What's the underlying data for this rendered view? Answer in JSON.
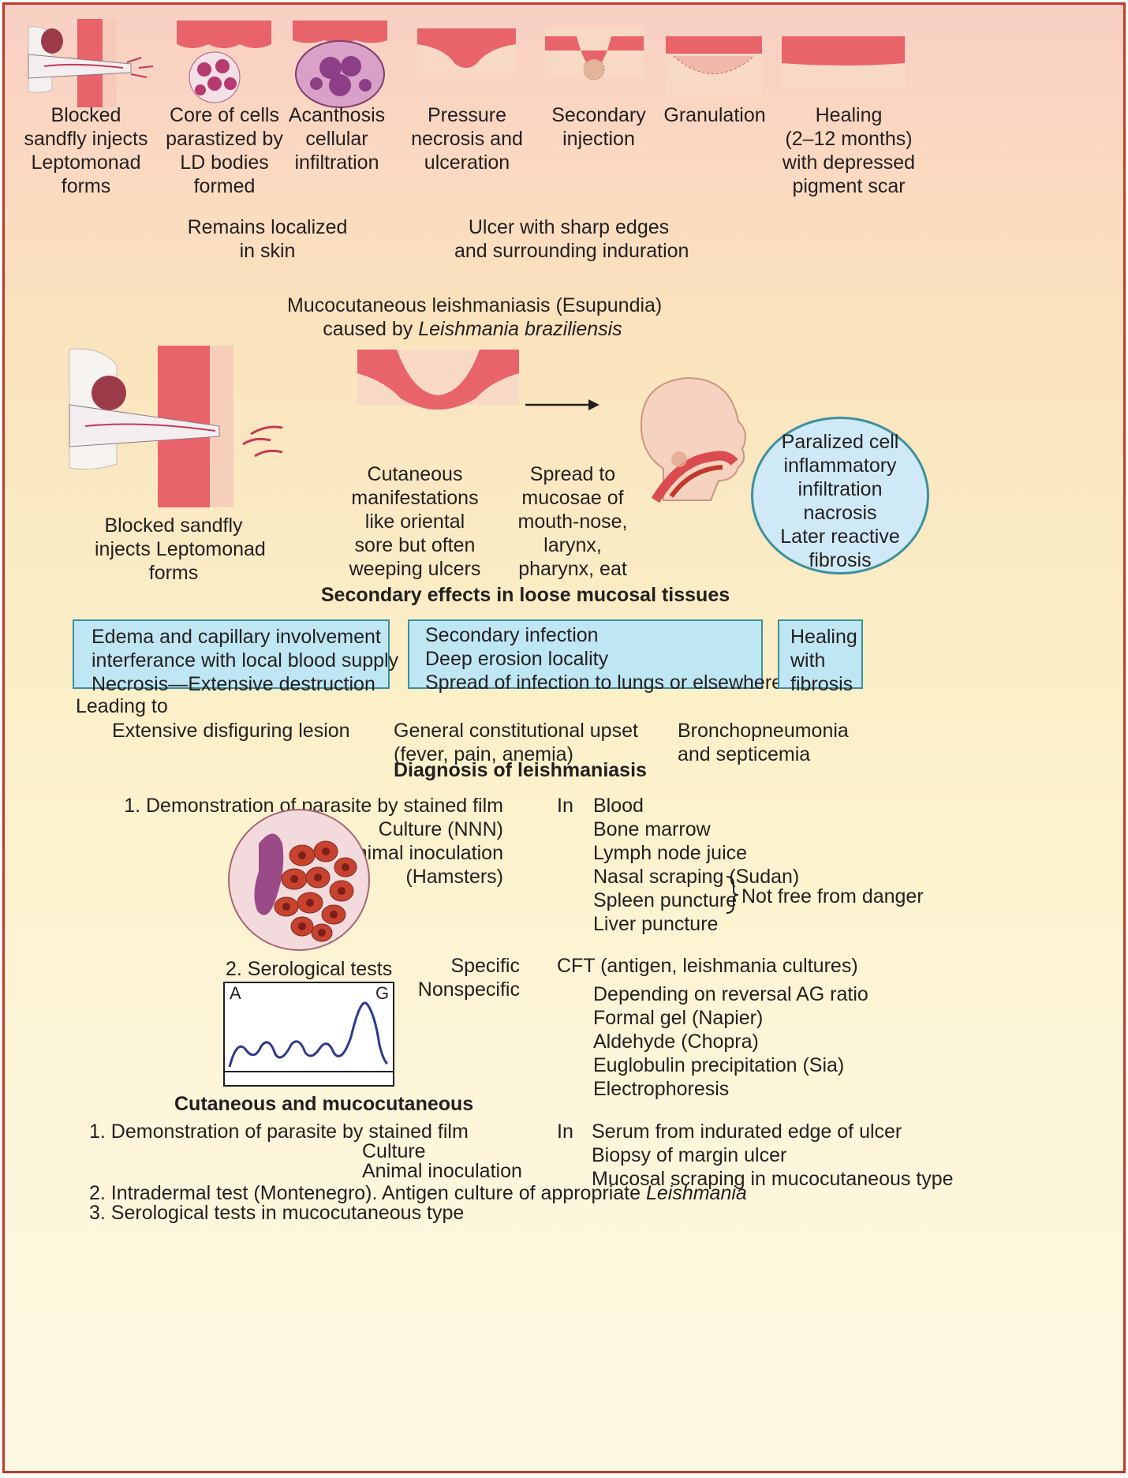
{
  "top_stages": [
    {
      "lines": [
        "Blocked",
        "sandfly injects",
        "Leptomonad",
        "forms"
      ]
    },
    {
      "lines": [
        "Core of cells",
        "parastized by",
        "LD bodies",
        "formed"
      ]
    },
    {
      "lines": [
        "Acanthosis",
        "cellular",
        "infiltration"
      ]
    },
    {
      "lines": [
        "Pressure",
        "necrosis and",
        "ulceration"
      ]
    },
    {
      "lines": [
        "Secondary",
        "injection"
      ]
    },
    {
      "lines": [
        "Granulation"
      ]
    },
    {
      "lines": [
        "Healing",
        "(2–12 months)",
        "with depressed",
        "pigment scar"
      ]
    }
  ],
  "notes": {
    "localized": [
      "Remains localized",
      "in skin"
    ],
    "ulcer": [
      "Ulcer with sharp edges",
      "and surrounding induration"
    ]
  },
  "mucocutaneous": {
    "title_line1": "Mucocutaneous leishmaniasis (Esupundia)",
    "title_prefix": "caused by ",
    "title_species": "Leishmania braziliensis",
    "sandfly": [
      "Blocked sandfly",
      "injects Leptomonad",
      "forms"
    ],
    "cutaneous": [
      "Cutaneous",
      "manifestations",
      "like oriental",
      "sore but often",
      "weeping ulcers"
    ],
    "spread": [
      "Spread to",
      "mucosae of",
      "mouth-nose,",
      "larynx,",
      "pharynx, eat"
    ],
    "circle": [
      "Paralized cell",
      "inflammatory",
      "infiltration",
      "nacrosis",
      "Later reactive",
      "fibrosis"
    ]
  },
  "secondary": {
    "heading": "Secondary effects in loose mucosal tissues",
    "box1": [
      "Edema and capillary involvement",
      "interferance with local blood supply",
      "Necrosis—Extensive destruction"
    ],
    "box2": [
      "Secondary infection",
      "Deep erosion locality",
      "Spread of infection to lungs or elsewhere"
    ],
    "box3": [
      "Healing",
      "with",
      "fibrosis"
    ],
    "leading_to": "Leading to",
    "outcome1": "Extensive disfiguring lesion",
    "outcome2": [
      "General constitutional upset",
      "(fever, pain, anemia)"
    ],
    "outcome3": [
      "Bronchopneumonia",
      "and septicemia"
    ]
  },
  "diagnosis": {
    "heading": "Diagnosis of leishmaniasis",
    "demo_lines": [
      "1. Demonstration of parasite by stained film",
      "Culture (NNN)",
      "Animal inoculation",
      "(Hamsters)"
    ],
    "in_label": "In",
    "sites": [
      "Blood",
      "Bone marrow",
      "Lymph node juice",
      "Nasal scraping (Sudan)",
      "Spleen puncture",
      "Liver puncture"
    ],
    "danger": "Not free from danger",
    "serological": "2. Serological tests",
    "specific": "Specific",
    "nonspecific": "Nonspecific",
    "cft": "CFT (antigen, leishmania cultures)",
    "nonspecific_tests": [
      "Depending on reversal AG ratio",
      "Formal gel (Napier)",
      "Aldehyde (Chopra)",
      "Euglobulin precipitation (Sia)",
      "Electrophoresis"
    ],
    "graph_label_a": "A",
    "graph_label_g": "G"
  },
  "cutaneous_dx": {
    "heading": "Cutaneous and mucocutaneous",
    "item1": "1. Demonstration of parasite by stained film",
    "culture": "Culture",
    "animal": "Animal inoculation",
    "in_label": "In",
    "sites": [
      "Serum from indurated edge of ulcer",
      "Biopsy of margin ulcer",
      "Mucosal scraping in mucocutaneous type"
    ],
    "item2_prefix": "2. Intradermal test (Montenegro). Antigen culture of appropriate ",
    "item2_species": "Leishmania",
    "item3": "3. Serological tests in mucocutaneous type"
  },
  "colors": {
    "border": "#c0392b",
    "tissue": "#e8636a",
    "box_fill": "#bfe6f3",
    "box_border": "#3e8f9e"
  }
}
